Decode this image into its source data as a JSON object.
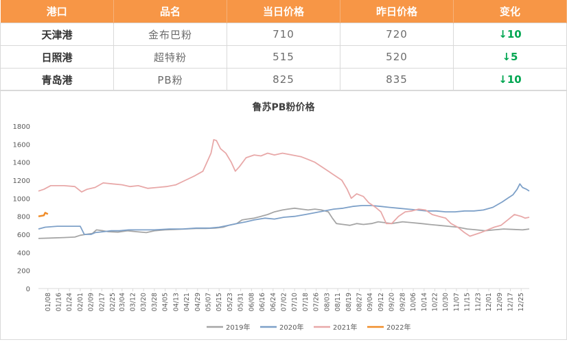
{
  "table": {
    "headers": [
      "港口",
      "品名",
      "当日价格",
      "昨日价格",
      "变化"
    ],
    "rows": [
      {
        "port": "天津港",
        "product": "金布巴粉",
        "today": "710",
        "yesterday": "720",
        "change": "↓10"
      },
      {
        "port": "日照港",
        "product": "超特粉",
        "today": "515",
        "yesterday": "520",
        "change": "↓5"
      },
      {
        "port": "青岛港",
        "product": "PB粉",
        "today": "825",
        "yesterday": "835",
        "change": "↓10"
      }
    ],
    "colors": {
      "header_bg": "#f79646",
      "header_text": "#ffffff",
      "change_text": "#00a651"
    }
  },
  "chart_data": {
    "type": "line",
    "title": "鲁苏PB粉价格",
    "xlabel": "",
    "ylabel": "",
    "ylim": [
      0,
      1800
    ],
    "yticks": [
      0,
      200,
      400,
      600,
      800,
      1000,
      1200,
      1400,
      1600,
      1800
    ],
    "xlim": [
      "01/01",
      "12/31"
    ],
    "xticks": [
      "01/08",
      "01/16",
      "01/24",
      "02/01",
      "02/09",
      "02/17",
      "02/25",
      "03/04",
      "03/12",
      "03/20",
      "03/28",
      "04/05",
      "04/13",
      "04/21",
      "04/29",
      "05/07",
      "05/15",
      "05/23",
      "05/31",
      "06/08",
      "06/16",
      "06/24",
      "07/02",
      "07/10",
      "07/18",
      "07/26",
      "08/03",
      "08/11",
      "08/19",
      "08/27",
      "09/04",
      "09/12",
      "09/20",
      "09/28",
      "10/06",
      "10/14",
      "10/22",
      "10/30",
      "11/07",
      "11/15",
      "11/23",
      "12/01",
      "12/09",
      "12/17",
      "12/25"
    ],
    "legend_position": "bottom",
    "grid": false,
    "series": [
      {
        "name": "2019年",
        "color": "#a5a5a5",
        "points": [
          [
            "01/01",
            555
          ],
          [
            "01/10",
            560
          ],
          [
            "01/20",
            565
          ],
          [
            "01/28",
            570
          ],
          [
            "02/01",
            590
          ],
          [
            "02/05",
            600
          ],
          [
            "02/10",
            610
          ],
          [
            "02/13",
            650
          ],
          [
            "02/18",
            640
          ],
          [
            "02/22",
            630
          ],
          [
            "03/01",
            625
          ],
          [
            "03/08",
            640
          ],
          [
            "03/15",
            630
          ],
          [
            "03/22",
            620
          ],
          [
            "03/28",
            640
          ],
          [
            "04/05",
            650
          ],
          [
            "04/12",
            655
          ],
          [
            "04/20",
            660
          ],
          [
            "04/28",
            665
          ],
          [
            "05/05",
            665
          ],
          [
            "05/12",
            670
          ],
          [
            "05/18",
            680
          ],
          [
            "05/22",
            700
          ],
          [
            "05/28",
            720
          ],
          [
            "06/01",
            760
          ],
          [
            "06/05",
            770
          ],
          [
            "06/10",
            780
          ],
          [
            "06/15",
            800
          ],
          [
            "06/20",
            820
          ],
          [
            "06/25",
            850
          ],
          [
            "07/01",
            870
          ],
          [
            "07/05",
            880
          ],
          [
            "07/10",
            890
          ],
          [
            "07/15",
            880
          ],
          [
            "07/20",
            870
          ],
          [
            "07/25",
            880
          ],
          [
            "07/30",
            870
          ],
          [
            "08/04",
            850
          ],
          [
            "08/07",
            780
          ],
          [
            "08/10",
            720
          ],
          [
            "08/15",
            710
          ],
          [
            "08/20",
            700
          ],
          [
            "08/25",
            720
          ],
          [
            "08/30",
            710
          ],
          [
            "09/05",
            720
          ],
          [
            "09/10",
            740
          ],
          [
            "09/15",
            730
          ],
          [
            "09/20",
            720
          ],
          [
            "09/28",
            740
          ],
          [
            "10/05",
            730
          ],
          [
            "10/12",
            720
          ],
          [
            "10/18",
            710
          ],
          [
            "10/25",
            700
          ],
          [
            "11/01",
            690
          ],
          [
            "11/08",
            680
          ],
          [
            "11/15",
            660
          ],
          [
            "11/22",
            650
          ],
          [
            "11/28",
            640
          ],
          [
            "12/05",
            650
          ],
          [
            "12/12",
            660
          ],
          [
            "12/20",
            655
          ],
          [
            "12/26",
            650
          ],
          [
            "12/31",
            660
          ]
        ]
      },
      {
        "name": "2020年",
        "color": "#7da0c8",
        "points": [
          [
            "01/01",
            660
          ],
          [
            "01/06",
            680
          ],
          [
            "01/15",
            690
          ],
          [
            "01/25",
            690
          ],
          [
            "02/01",
            690
          ],
          [
            "02/04",
            600
          ],
          [
            "02/09",
            600
          ],
          [
            "02/12",
            620
          ],
          [
            "02/18",
            630
          ],
          [
            "02/24",
            640
          ],
          [
            "03/02",
            640
          ],
          [
            "03/09",
            650
          ],
          [
            "03/18",
            650
          ],
          [
            "03/28",
            650
          ],
          [
            "04/08",
            660
          ],
          [
            "04/18",
            660
          ],
          [
            "04/28",
            670
          ],
          [
            "05/08",
            670
          ],
          [
            "05/15",
            680
          ],
          [
            "05/22",
            700
          ],
          [
            "05/28",
            720
          ],
          [
            "06/04",
            740
          ],
          [
            "06/10",
            760
          ],
          [
            "06/18",
            780
          ],
          [
            "06/25",
            770
          ],
          [
            "07/02",
            790
          ],
          [
            "07/10",
            800
          ],
          [
            "07/18",
            820
          ],
          [
            "07/25",
            840
          ],
          [
            "08/01",
            860
          ],
          [
            "08/08",
            880
          ],
          [
            "08/15",
            890
          ],
          [
            "08/22",
            910
          ],
          [
            "08/29",
            920
          ],
          [
            "09/05",
            920
          ],
          [
            "09/12",
            910
          ],
          [
            "09/18",
            900
          ],
          [
            "09/25",
            890
          ],
          [
            "10/02",
            880
          ],
          [
            "10/09",
            870
          ],
          [
            "10/16",
            860
          ],
          [
            "10/23",
            860
          ],
          [
            "10/30",
            850
          ],
          [
            "11/06",
            850
          ],
          [
            "11/13",
            860
          ],
          [
            "11/20",
            860
          ],
          [
            "11/27",
            870
          ],
          [
            "12/04",
            900
          ],
          [
            "12/11",
            960
          ],
          [
            "12/15",
            1000
          ],
          [
            "12/19",
            1040
          ],
          [
            "12/22",
            1100
          ],
          [
            "12/24",
            1160
          ],
          [
            "12/26",
            1120
          ],
          [
            "12/29",
            1100
          ],
          [
            "12/31",
            1080
          ]
        ]
      },
      {
        "name": "2021年",
        "color": "#e8a8a8",
        "points": [
          [
            "01/01",
            1080
          ],
          [
            "01/05",
            1100
          ],
          [
            "01/10",
            1140
          ],
          [
            "01/20",
            1140
          ],
          [
            "01/28",
            1130
          ],
          [
            "02/02",
            1070
          ],
          [
            "02/06",
            1100
          ],
          [
            "02/12",
            1120
          ],
          [
            "02/18",
            1170
          ],
          [
            "02/25",
            1160
          ],
          [
            "03/04",
            1150
          ],
          [
            "03/10",
            1130
          ],
          [
            "03/16",
            1140
          ],
          [
            "03/23",
            1110
          ],
          [
            "03/30",
            1120
          ],
          [
            "04/06",
            1130
          ],
          [
            "04/13",
            1150
          ],
          [
            "04/20",
            1200
          ],
          [
            "04/27",
            1250
          ],
          [
            "05/03",
            1300
          ],
          [
            "05/06",
            1400
          ],
          [
            "05/09",
            1500
          ],
          [
            "05/11",
            1650
          ],
          [
            "05/13",
            1640
          ],
          [
            "05/16",
            1550
          ],
          [
            "05/20",
            1500
          ],
          [
            "05/24",
            1400
          ],
          [
            "05/27",
            1300
          ],
          [
            "05/30",
            1350
          ],
          [
            "06/04",
            1450
          ],
          [
            "06/10",
            1480
          ],
          [
            "06/15",
            1470
          ],
          [
            "06/20",
            1500
          ],
          [
            "06/25",
            1480
          ],
          [
            "07/01",
            1500
          ],
          [
            "07/08",
            1480
          ],
          [
            "07/15",
            1460
          ],
          [
            "07/20",
            1430
          ],
          [
            "07/25",
            1400
          ],
          [
            "07/30",
            1350
          ],
          [
            "08/04",
            1300
          ],
          [
            "08/09",
            1250
          ],
          [
            "08/14",
            1200
          ],
          [
            "08/18",
            1100
          ],
          [
            "08/21",
            1000
          ],
          [
            "08/25",
            1050
          ],
          [
            "08/30",
            1020
          ],
          [
            "09/03",
            950
          ],
          [
            "09/08",
            900
          ],
          [
            "09/12",
            850
          ],
          [
            "09/16",
            720
          ],
          [
            "09/20",
            720
          ],
          [
            "09/25",
            800
          ],
          [
            "09/30",
            850
          ],
          [
            "10/05",
            860
          ],
          [
            "10/10",
            880
          ],
          [
            "10/15",
            870
          ],
          [
            "10/20",
            820
          ],
          [
            "10/25",
            800
          ],
          [
            "10/30",
            780
          ],
          [
            "11/03",
            720
          ],
          [
            "11/08",
            680
          ],
          [
            "11/13",
            620
          ],
          [
            "11/17",
            580
          ],
          [
            "11/21",
            600
          ],
          [
            "11/25",
            620
          ],
          [
            "11/30",
            650
          ],
          [
            "12/05",
            680
          ],
          [
            "12/10",
            700
          ],
          [
            "12/15",
            760
          ],
          [
            "12/20",
            820
          ],
          [
            "12/25",
            800
          ],
          [
            "12/28",
            780
          ],
          [
            "12/31",
            790
          ]
        ]
      },
      {
        "name": "2022年",
        "color": "#f08c28",
        "points": [
          [
            "01/01",
            800
          ],
          [
            "01/03",
            805
          ],
          [
            "01/05",
            810
          ],
          [
            "01/06",
            840
          ],
          [
            "01/08",
            825
          ]
        ]
      }
    ]
  }
}
